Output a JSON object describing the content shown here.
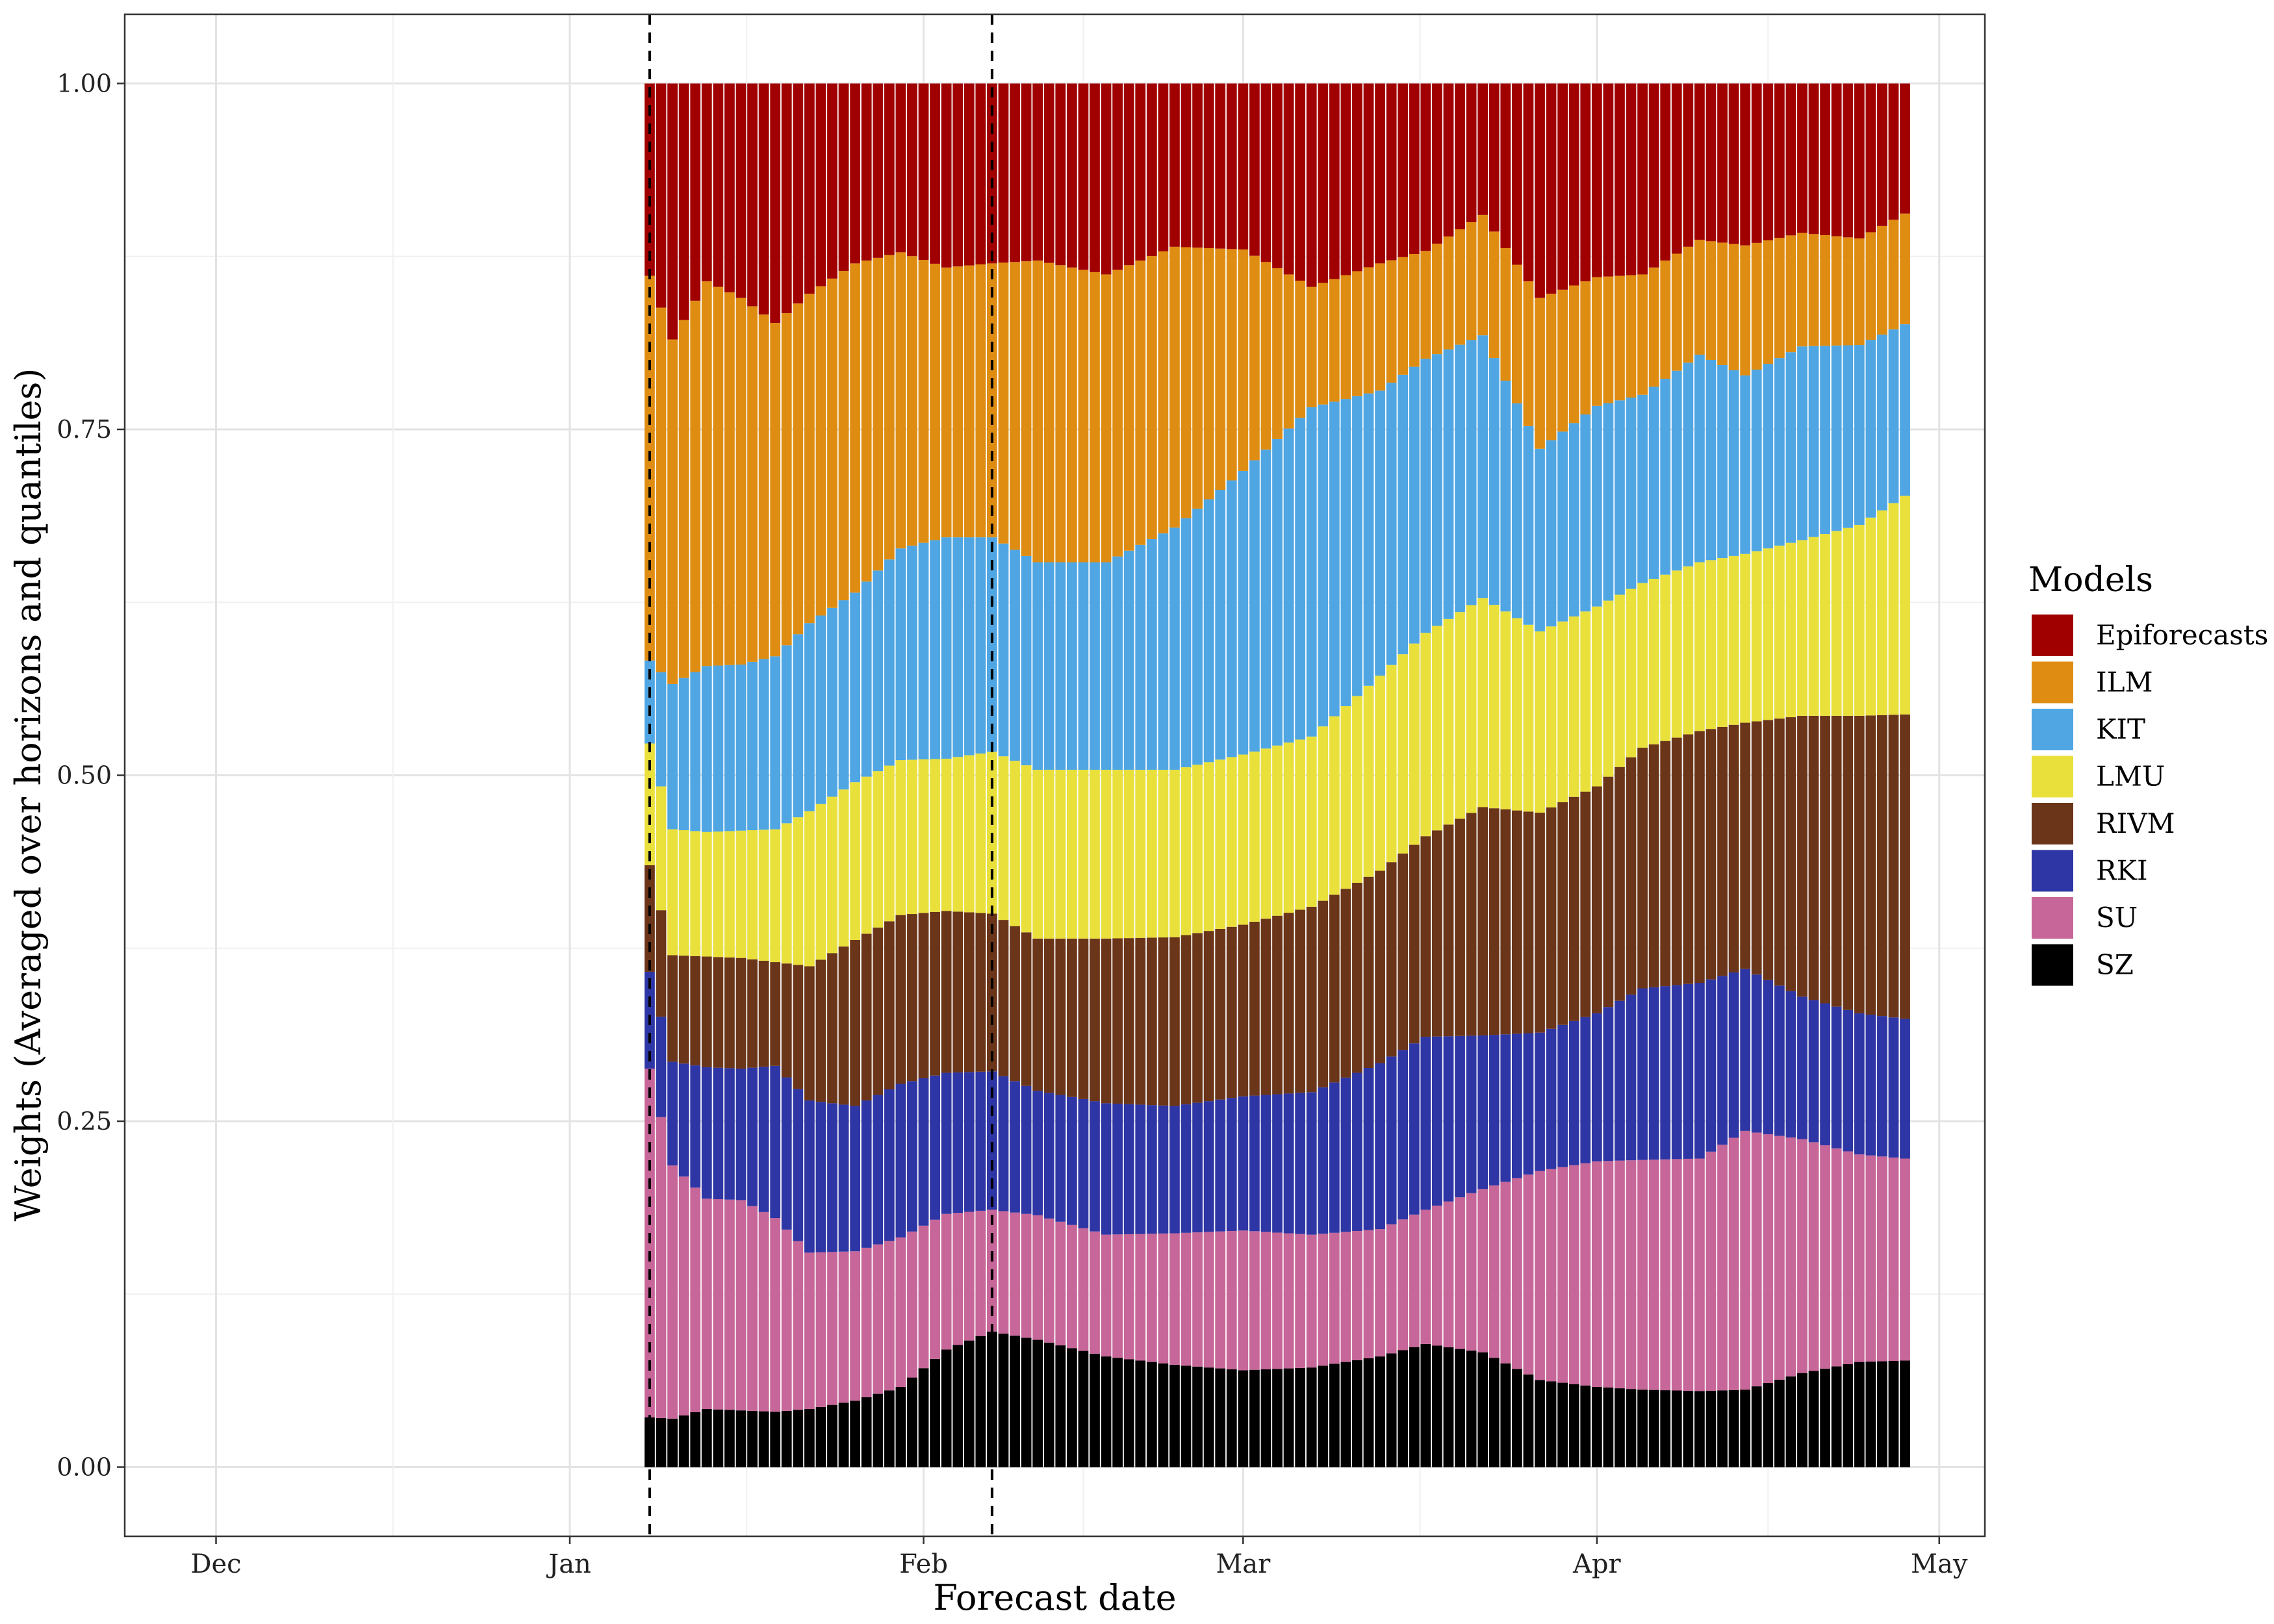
{
  "chart_data": {
    "type": "bar",
    "stacked": true,
    "xlabel": "Forecast date",
    "ylabel": "Weights (Averaged over horizons and quantiles)",
    "x_range": [
      "2020-11-23",
      "2021-05-05"
    ],
    "ylim": [
      -0.05,
      1.05
    ],
    "grid": true,
    "x_tick_labels": [
      {
        "date": "2020-12-01",
        "label": "Dec"
      },
      {
        "date": "2021-01-01",
        "label": "Jan"
      },
      {
        "date": "2021-02-01",
        "label": "Feb"
      },
      {
        "date": "2021-03-01",
        "label": "Mar"
      },
      {
        "date": "2021-04-01",
        "label": "Apr"
      },
      {
        "date": "2021-05-01",
        "label": "May"
      }
    ],
    "y_tick_labels": [
      {
        "value": 0.0,
        "label": "0.00"
      },
      {
        "value": 0.25,
        "label": "0.25"
      },
      {
        "value": 0.5,
        "label": "0.50"
      },
      {
        "value": 0.75,
        "label": "0.75"
      },
      {
        "value": 1.0,
        "label": "1.00"
      }
    ],
    "first_date": "2021-01-08",
    "last_date": "2021-04-28",
    "reference_lines": [
      "2021-01-08",
      "2021-02-07"
    ],
    "key_dates": [
      "2021-01-08",
      "2021-01-10",
      "2021-01-13",
      "2021-01-16",
      "2021-01-19",
      "2021-01-22",
      "2021-01-26",
      "2021-01-30",
      "2021-02-03",
      "2021-02-07",
      "2021-02-11",
      "2021-02-17",
      "2021-02-23",
      "2021-03-01",
      "2021-03-07",
      "2021-03-13",
      "2021-03-17",
      "2021-03-22",
      "2021-03-27",
      "2021-04-01",
      "2021-04-05",
      "2021-04-10",
      "2021-04-14",
      "2021-04-19",
      "2021-04-24",
      "2021-04-28"
    ],
    "legend_position": "right",
    "legend_title": "Models",
    "series": [
      {
        "name": "SZ",
        "color": "#000000",
        "values": [
          0.036,
          0.035,
          0.042,
          0.041,
          0.04,
          0.042,
          0.048,
          0.058,
          0.085,
          0.098,
          0.092,
          0.08,
          0.074,
          0.07,
          0.072,
          0.08,
          0.089,
          0.083,
          0.063,
          0.058,
          0.056,
          0.055,
          0.056,
          0.068,
          0.076,
          0.077
        ]
      },
      {
        "name": "SU",
        "color": "#C76699",
        "values": [
          0.252,
          0.183,
          0.152,
          0.152,
          0.14,
          0.113,
          0.108,
          0.108,
          0.098,
          0.088,
          0.09,
          0.088,
          0.095,
          0.101,
          0.096,
          0.092,
          0.097,
          0.118,
          0.151,
          0.163,
          0.166,
          0.168,
          0.187,
          0.169,
          0.15,
          0.146
        ]
      },
      {
        "name": "RKI",
        "color": "#2E35A4",
        "values": [
          0.07,
          0.075,
          0.095,
          0.095,
          0.11,
          0.11,
          0.105,
          0.111,
          0.102,
          0.1,
          0.09,
          0.095,
          0.092,
          0.097,
          0.103,
          0.12,
          0.125,
          0.111,
          0.1,
          0.107,
          0.124,
          0.127,
          0.117,
          0.103,
          0.102,
          0.101
        ]
      },
      {
        "name": "RIVM",
        "color": "#6B3519",
        "values": [
          0.077,
          0.077,
          0.08,
          0.08,
          0.075,
          0.097,
          0.12,
          0.122,
          0.117,
          0.114,
          0.11,
          0.119,
          0.122,
          0.124,
          0.134,
          0.139,
          0.145,
          0.165,
          0.159,
          0.164,
          0.174,
          0.182,
          0.178,
          0.203,
          0.215,
          0.22
        ]
      },
      {
        "name": "LMU",
        "color": "#EAE03C",
        "values": [
          0.088,
          0.091,
          0.09,
          0.092,
          0.096,
          0.112,
          0.114,
          0.112,
          0.11,
          0.117,
          0.122,
          0.122,
          0.121,
          0.123,
          0.123,
          0.141,
          0.147,
          0.151,
          0.131,
          0.13,
          0.119,
          0.122,
          0.122,
          0.127,
          0.138,
          0.158
        ]
      },
      {
        "name": "KIT",
        "color": "#4FA6E3",
        "values": [
          0.06,
          0.105,
          0.12,
          0.12,
          0.125,
          0.136,
          0.137,
          0.153,
          0.16,
          0.155,
          0.15,
          0.15,
          0.175,
          0.205,
          0.238,
          0.206,
          0.198,
          0.19,
          0.132,
          0.145,
          0.136,
          0.15,
          0.129,
          0.14,
          0.13,
          0.124
        ]
      },
      {
        "name": "ILM",
        "color": "#DF8D12",
        "values": [
          0.278,
          0.249,
          0.278,
          0.265,
          0.241,
          0.238,
          0.238,
          0.214,
          0.195,
          0.198,
          0.218,
          0.208,
          0.203,
          0.16,
          0.087,
          0.092,
          0.078,
          0.087,
          0.109,
          0.093,
          0.087,
          0.083,
          0.094,
          0.082,
          0.077,
          0.08
        ]
      },
      {
        "name": "Epiforecasts",
        "color": "#A00000",
        "values": [
          0.139,
          0.185,
          0.143,
          0.155,
          0.173,
          0.152,
          0.13,
          0.122,
          0.133,
          0.13,
          0.128,
          0.138,
          0.118,
          0.12,
          0.147,
          0.13,
          0.121,
          0.095,
          0.155,
          0.14,
          0.138,
          0.113,
          0.117,
          0.108,
          0.112,
          0.094
        ]
      }
    ]
  }
}
